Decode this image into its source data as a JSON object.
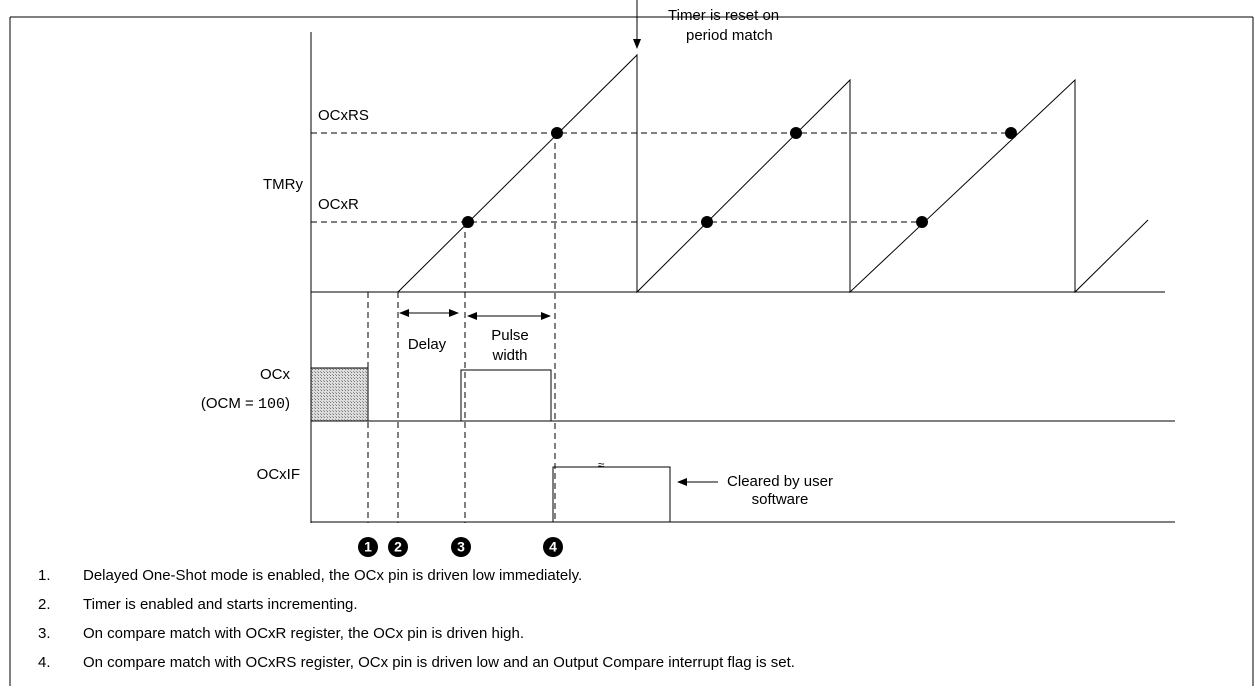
{
  "diagram": {
    "reset_note": [
      "Timer is reset on",
      "period match"
    ],
    "labels": {
      "ocxrs": "OCxRS",
      "ocxr": "OCxR",
      "tmry": "TMRy",
      "ocx": "OCx",
      "ocm_prefix": "(OCM = ",
      "ocm_value": "100",
      "ocm_suffix": ")",
      "ocxif": "OCxIF"
    },
    "delay": "Delay",
    "pulse_width": [
      "Pulse",
      "width"
    ],
    "cleared_note": [
      "Cleared by user",
      "software"
    ],
    "markers": [
      "1",
      "2",
      "3",
      "4"
    ]
  },
  "notes": [
    {
      "number": "1.",
      "text": "Delayed One-Shot mode is enabled, the OCx pin is driven low immediately."
    },
    {
      "number": "2.",
      "text": "Timer is enabled and starts incrementing."
    },
    {
      "number": "3.",
      "text": "On compare match with OCxR register, the OCx pin is driven high."
    },
    {
      "number": "4.",
      "text": "On compare match with OCxRS register, OCx pin is driven low and an Output Compare interrupt flag is set."
    }
  ]
}
